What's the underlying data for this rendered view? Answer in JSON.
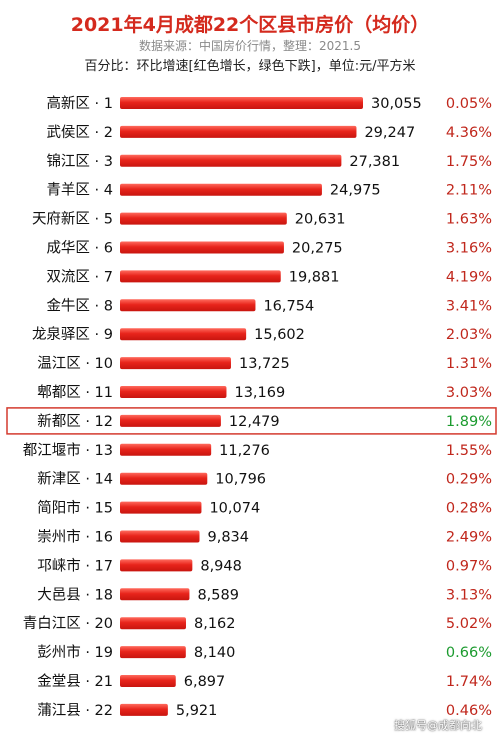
{
  "header": {
    "title": "2021年4月成都22个区县市房价（均价）",
    "subtitle": "数据来源：中国房价行情，整理：2021.5",
    "note": "百分比：环比增速[红色增长，绿色下跌]，单位:元/平方米"
  },
  "colors": {
    "bar": "#e8241b",
    "increase": "#c0271c",
    "decrease": "#1c9b2f",
    "highlight_border": "#d43a2e"
  },
  "chart_data": {
    "type": "bar",
    "orientation": "horizontal",
    "categories": [
      "高新区 · 1",
      "武侯区 · 2",
      "锦江区 · 3",
      "青羊区 · 4",
      "天府新区 · 5",
      "成华区 · 6",
      "双流区 · 7",
      "金牛区 · 8",
      "龙泉驿区 · 9",
      "温江区 · 10",
      "郫都区 · 11",
      "新都区 · 12",
      "都江堰市 · 13",
      "新津区 · 14",
      "简阳市 · 15",
      "崇州市 · 16",
      "邛崃市 · 17",
      "大邑县 · 18",
      "青白江区 · 20",
      "彭州市 · 19",
      "金堂县 · 21",
      "蒲江县 · 22"
    ],
    "values": [
      30055,
      29247,
      27381,
      24975,
      20631,
      20275,
      19881,
      16754,
      15602,
      13725,
      13169,
      12479,
      11276,
      10796,
      10074,
      9834,
      8948,
      8589,
      8162,
      8140,
      6897,
      5921
    ],
    "value_labels": [
      "30,055",
      "29,247",
      "27,381",
      "24,975",
      "20,631",
      "20,275",
      "19,881",
      "16,754",
      "15,602",
      "13,725",
      "13,169",
      "12,479",
      "11,276",
      "10,796",
      "10,074",
      "9,834",
      "8,948",
      "8,589",
      "8,162",
      "8,140",
      "6,897",
      "5,921"
    ],
    "percent_labels": [
      "0.05%",
      "4.36%",
      "1.75%",
      "2.11%",
      "1.63%",
      "3.16%",
      "4.19%",
      "3.41%",
      "2.03%",
      "1.31%",
      "3.03%",
      "1.89%",
      "1.55%",
      "0.29%",
      "0.28%",
      "2.49%",
      "0.97%",
      "3.13%",
      "5.02%",
      "0.66%",
      "1.74%",
      "0.46%"
    ],
    "percent_direction": [
      "up",
      "up",
      "up",
      "up",
      "up",
      "up",
      "up",
      "up",
      "up",
      "up",
      "up",
      "down",
      "up",
      "up",
      "up",
      "up",
      "up",
      "up",
      "up",
      "down",
      "up",
      "up"
    ],
    "highlight_index": 11,
    "xlim": [
      0,
      30055
    ]
  },
  "footer": {
    "watermark": "搜狐号@成都向北"
  }
}
